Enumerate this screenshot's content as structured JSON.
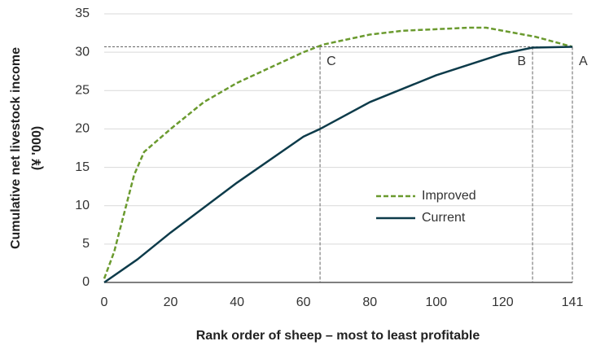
{
  "chart_data": {
    "type": "line",
    "xlabel": "Rank order of sheep – most to least profitable",
    "ylabel": [
      "Cumulative net livestock income",
      "(¥ '000)"
    ],
    "xlim": [
      0,
      141
    ],
    "ylim": [
      0,
      35
    ],
    "xticks": [
      0,
      20,
      40,
      60,
      80,
      100,
      120,
      141
    ],
    "yticks": [
      0,
      5,
      10,
      15,
      20,
      25,
      30,
      35
    ],
    "grid": true,
    "legend": "center-right",
    "series": [
      {
        "name": "Improved",
        "color": "#6a9a2e",
        "dashed": true,
        "x": [
          0,
          3,
          6,
          9,
          12,
          20,
          30,
          40,
          50,
          60,
          66,
          80,
          90,
          100,
          110,
          115,
          120,
          130,
          141
        ],
        "values": [
          0.5,
          4,
          9,
          14,
          17,
          20,
          23.5,
          26,
          28,
          30,
          31,
          32.3,
          32.8,
          33,
          33.2,
          33.2,
          32.8,
          32,
          30.7
        ]
      },
      {
        "name": "Current",
        "color": "#0d3b4a",
        "dashed": false,
        "x": [
          0,
          10,
          20,
          40,
          60,
          65,
          80,
          100,
          120,
          129,
          141
        ],
        "values": [
          0,
          3,
          6.5,
          13,
          19,
          20,
          23.5,
          27,
          29.8,
          30.6,
          30.7
        ]
      }
    ],
    "reference_y": 30.7,
    "reference_lines": [
      {
        "label": "C",
        "x": 65
      },
      {
        "label": "B",
        "x": 129
      },
      {
        "label": "A",
        "x": 141
      }
    ]
  }
}
